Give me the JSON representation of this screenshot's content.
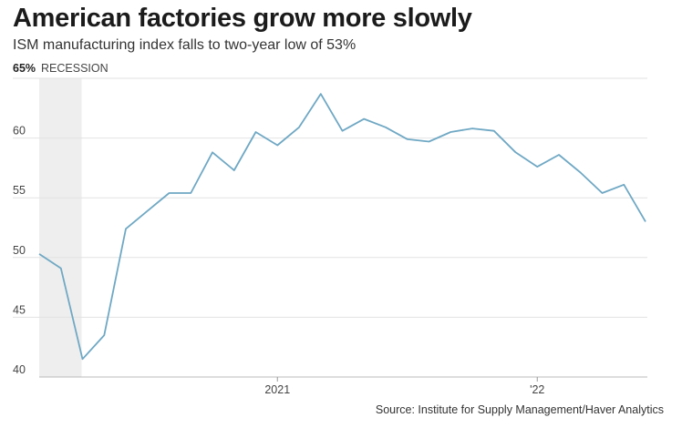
{
  "title": "American factories grow more slowly",
  "subtitle": "ISM manufacturing index falls to two-year low of 53%",
  "source": "Source: Institute for Supply Management/Haver Analytics",
  "colors": {
    "line": "#6fa8c4",
    "recession": "#eeeeee",
    "grid": "#e2e2e2"
  },
  "chart_data": {
    "type": "line",
    "title": "American factories grow more slowly",
    "subtitle": "ISM manufacturing index falls to two-year low of 53%",
    "xlabel": "",
    "ylabel": "",
    "ylim": [
      40,
      65
    ],
    "y_ticks": [
      40,
      45,
      50,
      55,
      60,
      65
    ],
    "y_tick_labels": [
      "40",
      "45",
      "50",
      "55",
      "60",
      "65%"
    ],
    "x_tick_labels": [
      {
        "label": "2021",
        "index": 11
      },
      {
        "label": "'22",
        "index": 23
      }
    ],
    "recession": {
      "label": "RECESSION",
      "start_index": 0,
      "end_index": 2
    },
    "grid": true,
    "x": [
      "2020-02",
      "2020-03",
      "2020-04",
      "2020-05",
      "2020-06",
      "2020-07",
      "2020-08",
      "2020-09",
      "2020-10",
      "2020-11",
      "2020-12",
      "2021-01",
      "2021-02",
      "2021-03",
      "2021-04",
      "2021-05",
      "2021-06",
      "2021-07",
      "2021-08",
      "2021-09",
      "2021-10",
      "2021-11",
      "2021-12",
      "2022-01",
      "2022-02",
      "2022-03",
      "2022-04",
      "2022-05",
      "2022-06"
    ],
    "series": [
      {
        "name": "ISM manufacturing index",
        "values": [
          50.3,
          49.1,
          41.5,
          43.5,
          52.4,
          53.9,
          55.4,
          55.4,
          58.8,
          57.3,
          60.5,
          59.4,
          60.9,
          63.7,
          60.6,
          61.6,
          60.9,
          59.9,
          59.7,
          60.5,
          60.8,
          60.6,
          58.8,
          57.6,
          58.6,
          57.1,
          55.4,
          56.1,
          53.0
        ]
      }
    ]
  }
}
